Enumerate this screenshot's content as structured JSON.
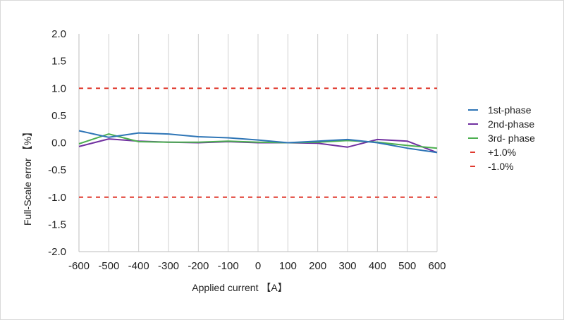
{
  "chart_data": {
    "type": "line",
    "xlabel": "Applied current 【A】",
    "ylabel": "Full-Scale error 【%】",
    "x": [
      -600,
      -500,
      -400,
      -300,
      -200,
      -100,
      0,
      100,
      200,
      300,
      400,
      500,
      600
    ],
    "xlim": [
      -600,
      600
    ],
    "ylim": [
      -2.0,
      2.0
    ],
    "x_ticks": [
      "-600",
      "-500",
      "-400",
      "-300",
      "-200",
      "-100",
      "0",
      "100",
      "200",
      "300",
      "400",
      "500",
      "600"
    ],
    "y_ticks": [
      "2.0",
      "1.5",
      "1.0",
      "0.5",
      "0.0",
      "-0.5",
      "-1.0",
      "-1.5",
      "-2.0"
    ],
    "grid": "vertical",
    "legend_position": "right",
    "series": [
      {
        "name": "1st-phase",
        "color": "#2e75b6",
        "style": "solid",
        "values": [
          0.22,
          0.1,
          0.18,
          0.16,
          0.11,
          0.09,
          0.05,
          0.0,
          0.03,
          0.06,
          0.0,
          -0.1,
          -0.18
        ]
      },
      {
        "name": "2nd-phase",
        "color": "#7030a0",
        "style": "solid",
        "values": [
          -0.07,
          0.07,
          0.03,
          0.01,
          0.0,
          0.02,
          0.0,
          0.0,
          -0.01,
          -0.08,
          0.06,
          0.03,
          -0.18
        ]
      },
      {
        "name": "3rd- phase",
        "color": "#4caf50",
        "style": "solid",
        "values": [
          -0.02,
          0.16,
          0.02,
          0.01,
          0.01,
          0.03,
          0.01,
          0.0,
          0.01,
          0.04,
          0.01,
          -0.05,
          -0.1
        ]
      },
      {
        "name": "+1.0%",
        "color": "#e03a2f",
        "style": "dashed",
        "values": [
          1.0,
          1.0,
          1.0,
          1.0,
          1.0,
          1.0,
          1.0,
          1.0,
          1.0,
          1.0,
          1.0,
          1.0,
          1.0
        ]
      },
      {
        "name": "-1.0%",
        "color": "#e03a2f",
        "style": "dashed",
        "values": [
          -1.0,
          -1.0,
          -1.0,
          -1.0,
          -1.0,
          -1.0,
          -1.0,
          -1.0,
          -1.0,
          -1.0,
          -1.0,
          -1.0,
          -1.0
        ]
      }
    ]
  }
}
